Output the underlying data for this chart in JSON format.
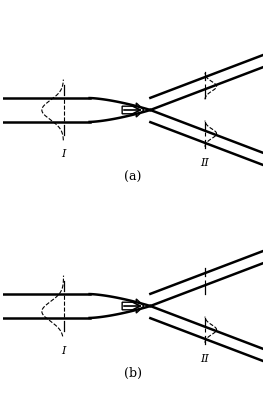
{
  "fig_width": 2.66,
  "fig_height": 4.16,
  "dpi": 100,
  "bg_color": "#ffffff",
  "line_color": "#000000",
  "label_a": "(a)",
  "label_b": "(b)",
  "label_I": "I",
  "label_II": "II",
  "lw_main": 1.8,
  "lw_thin": 0.9,
  "lw_dash": 0.8
}
